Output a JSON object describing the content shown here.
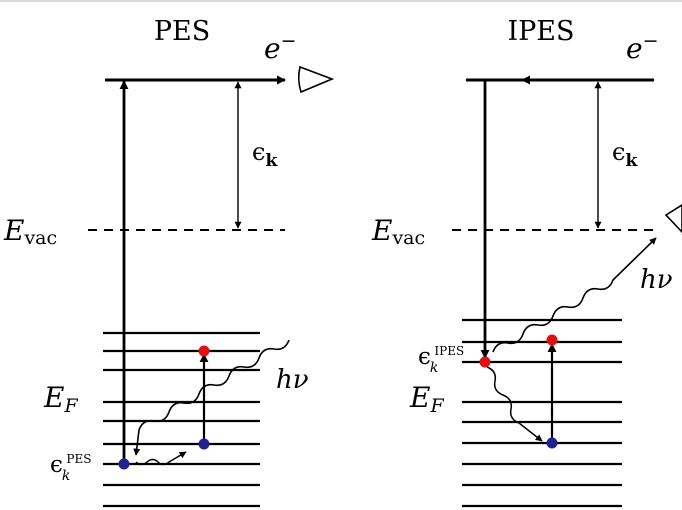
{
  "left_panel": {
    "title": "PES",
    "electron_label": "e",
    "electron_charge": "−",
    "kinetic_energy_symbol": "ϵ",
    "kinetic_energy_subscript": "k",
    "vacuum_symbol": "E",
    "vacuum_subscript": "vac",
    "fermi_symbol": "E",
    "fermi_subscript": "F",
    "photon_label": "hν",
    "state_symbol": "ϵ",
    "state_subscript": "k",
    "state_superscript": "PES"
  },
  "right_panel": {
    "title": "IPES",
    "electron_label": "e",
    "electron_charge": "−",
    "kinetic_energy_symbol": "ϵ",
    "kinetic_energy_subscript": "k",
    "vacuum_symbol": "E",
    "vacuum_subscript": "vac",
    "fermi_symbol": "E",
    "fermi_subscript": "F",
    "photon_label": "hν",
    "state_symbol": "ϵ",
    "state_subscript": "k",
    "state_superscript": "IPES"
  },
  "colors": {
    "ink": "#000000",
    "occupied_state": "#23238f",
    "empty_state": "#e01010"
  }
}
